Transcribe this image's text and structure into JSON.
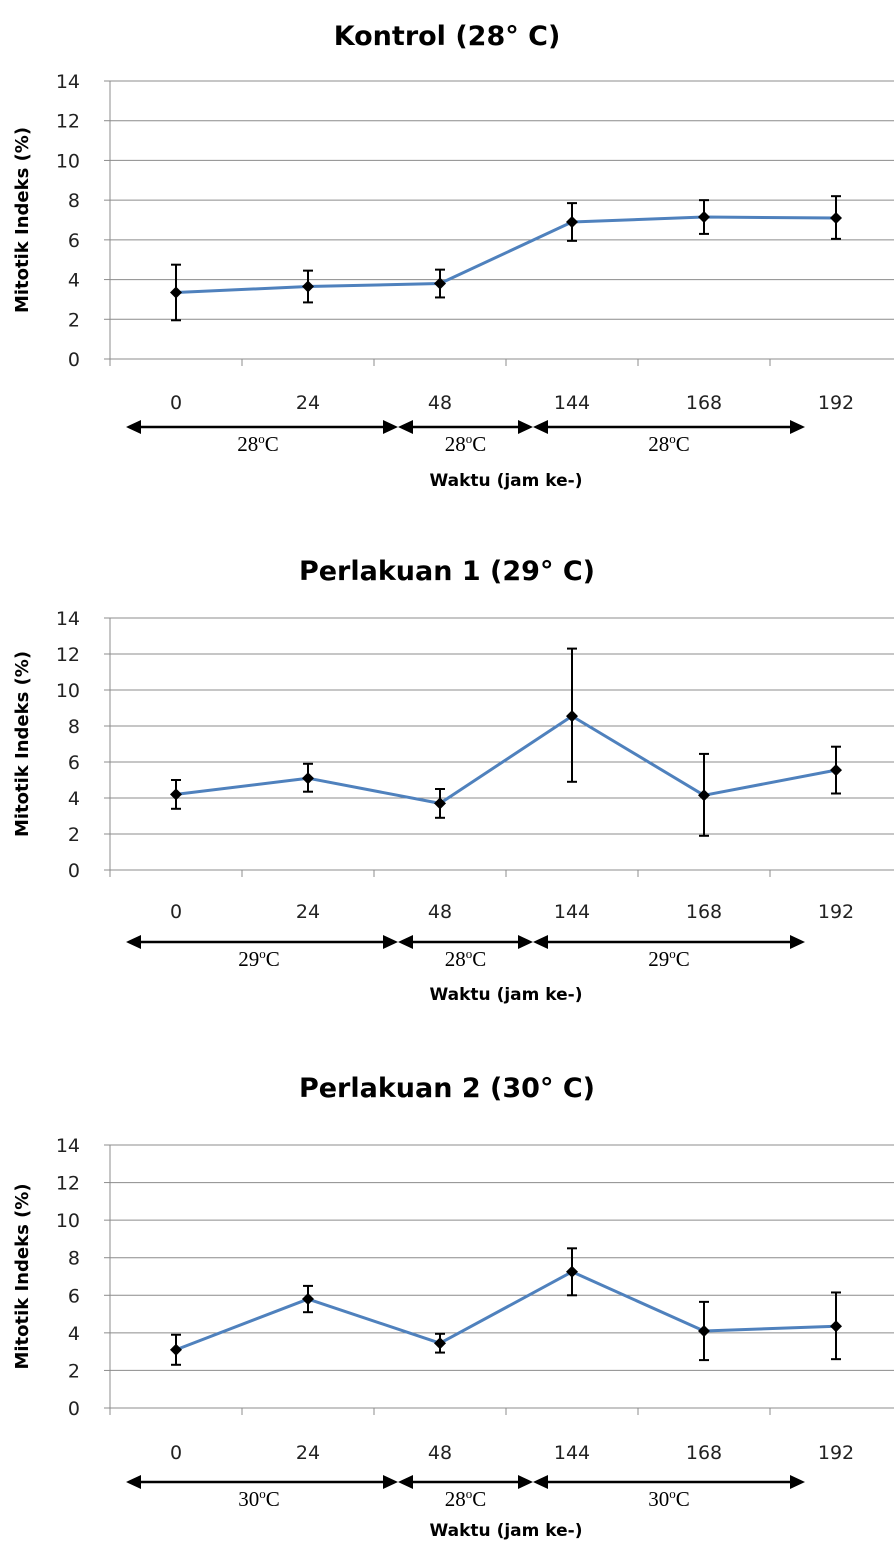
{
  "chart_data": [
    {
      "type": "line",
      "title": "Kontrol (28° C)",
      "xlabel": "Waktu (jam ke-)",
      "ylabel": "Mitotik Indeks (%)",
      "categories": [
        "0",
        "24",
        "48",
        "144",
        "168",
        "192"
      ],
      "ylim": [
        0,
        14
      ],
      "yticks": [
        0,
        2,
        4,
        6,
        8,
        10,
        12,
        14
      ],
      "grid": true,
      "series_color": "#4F81BD",
      "series": [
        {
          "values": [
            3.35,
            3.65,
            3.8,
            6.9,
            7.15,
            7.1
          ],
          "err_low": [
            1.95,
            2.85,
            3.1,
            5.95,
            6.3,
            6.05
          ],
          "err_high": [
            4.75,
            4.45,
            4.5,
            7.85,
            8.0,
            8.2
          ]
        }
      ],
      "periods": [
        {
          "label": "28",
          "unit": "C",
          "from": "0",
          "to": "48"
        },
        {
          "label": "28",
          "unit": "C",
          "from": "48",
          "to": "144"
        },
        {
          "label": "28",
          "unit": "C",
          "from": "144",
          "to": "192"
        }
      ]
    },
    {
      "type": "line",
      "title": "Perlakuan 1 (29° C)",
      "xlabel": "Waktu (jam ke-)",
      "ylabel": "Mitotik Indeks (%)",
      "categories": [
        "0",
        "24",
        "48",
        "144",
        "168",
        "192"
      ],
      "ylim": [
        0,
        14
      ],
      "yticks": [
        0,
        2,
        4,
        6,
        8,
        10,
        12,
        14
      ],
      "grid": true,
      "series_color": "#4F81BD",
      "series": [
        {
          "values": [
            4.2,
            5.1,
            3.7,
            8.55,
            4.15,
            5.55
          ],
          "err_low": [
            3.4,
            4.35,
            2.9,
            4.9,
            1.9,
            4.25
          ],
          "err_high": [
            5.0,
            5.9,
            4.5,
            12.3,
            6.45,
            6.85
          ]
        }
      ],
      "periods": [
        {
          "label": "29",
          "unit": "C",
          "from": "0",
          "to": "48"
        },
        {
          "label": "28",
          "unit": "C",
          "from": "48",
          "to": "144"
        },
        {
          "label": "29",
          "unit": "C",
          "from": "144",
          "to": "192"
        }
      ]
    },
    {
      "type": "line",
      "title": "Perlakuan 2 (30° C)",
      "xlabel": "Waktu (jam ke-)",
      "ylabel": "Mitotik Indeks (%)",
      "categories": [
        "0",
        "24",
        "48",
        "144",
        "168",
        "192"
      ],
      "ylim": [
        0,
        14
      ],
      "yticks": [
        0,
        2,
        4,
        6,
        8,
        10,
        12,
        14
      ],
      "grid": true,
      "series_color": "#4F81BD",
      "series": [
        {
          "values": [
            3.1,
            5.8,
            3.45,
            7.25,
            4.1,
            4.35
          ],
          "err_low": [
            2.3,
            5.1,
            2.95,
            6.0,
            2.55,
            2.6
          ],
          "err_high": [
            3.9,
            6.5,
            3.95,
            8.5,
            5.65,
            6.15
          ]
        }
      ],
      "periods": [
        {
          "label": "30",
          "unit": "C",
          "from": "0",
          "to": "48"
        },
        {
          "label": "28",
          "unit": "C",
          "from": "48",
          "to": "144"
        },
        {
          "label": "30",
          "unit": "C",
          "from": "144",
          "to": "192"
        }
      ]
    }
  ]
}
